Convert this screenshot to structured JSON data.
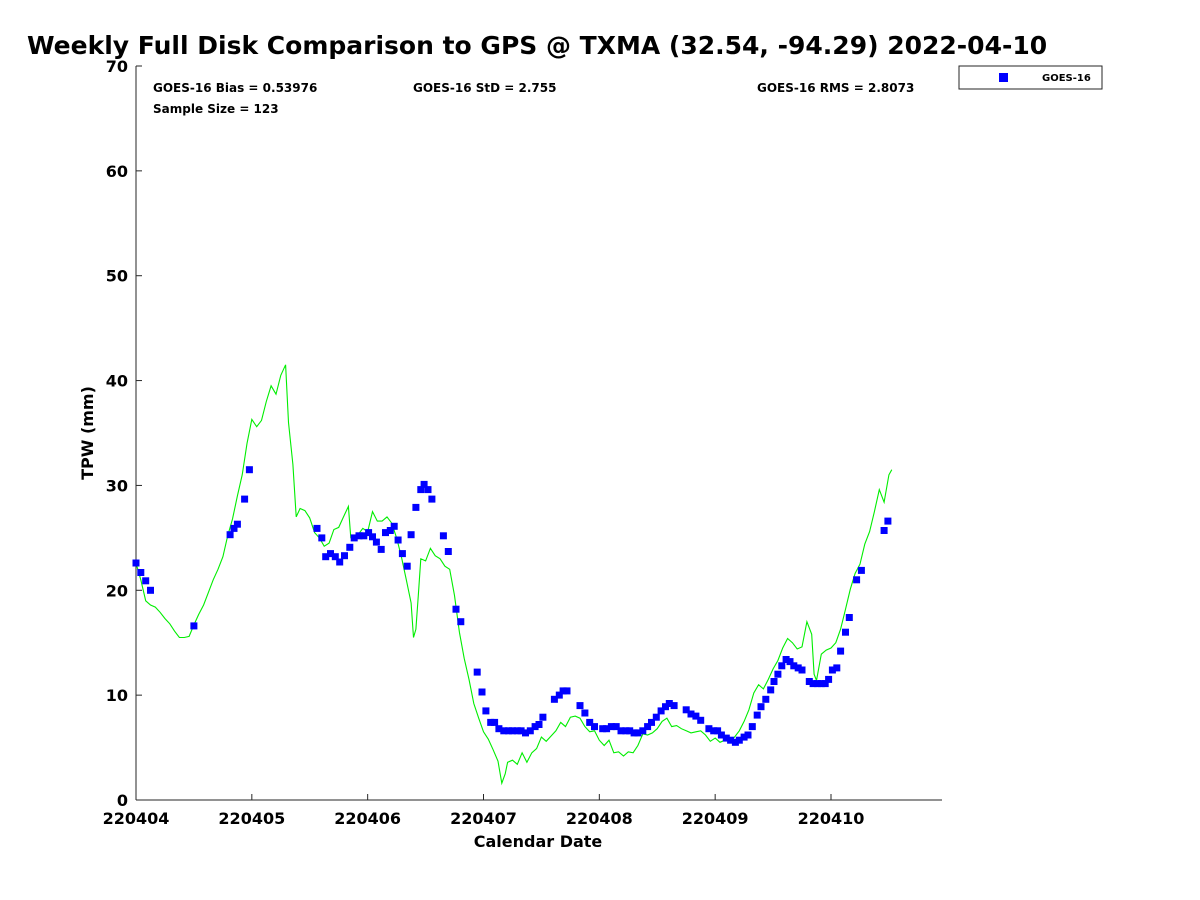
{
  "chart_data": {
    "type": "scatter",
    "title": "Weekly Full Disk Comparison to GPS @ TXMA (32.54, -94.29) 2022-04-10",
    "xlabel": "Calendar Date",
    "ylabel": "TPW (mm)",
    "x_ticks": [
      "220404",
      "220405",
      "220406",
      "220407",
      "220408",
      "220409",
      "220410"
    ],
    "y_ticks": [
      "0",
      "10",
      "20",
      "30",
      "40",
      "50",
      "60",
      "70"
    ],
    "ylim": [
      0,
      70
    ],
    "x_unit": "hours since 220404",
    "xlim": [
      0,
      167
    ],
    "grid": false,
    "legend_position": "top-right, outside plot",
    "stats": {
      "bias": "GOES-16 Bias = 0.53976",
      "std": "GOES-16 StD = 2.755",
      "rms": "GOES-16 RMS = 2.8073",
      "sample": "Sample Size = 123"
    },
    "series": [
      {
        "name": "GOES-16",
        "marker": "square",
        "color": "#0000ff",
        "points": [
          [
            0,
            22.6
          ],
          [
            1,
            21.7
          ],
          [
            2,
            20.9
          ],
          [
            3,
            20.0
          ],
          [
            12,
            16.6
          ],
          [
            19.5,
            25.3
          ],
          [
            20.3,
            25.9
          ],
          [
            21,
            26.3
          ],
          [
            22.5,
            28.7
          ],
          [
            23.5,
            31.5
          ],
          [
            37.5,
            25.9
          ],
          [
            38.5,
            25.0
          ],
          [
            39.3,
            23.2
          ],
          [
            40.3,
            23.5
          ],
          [
            41.3,
            23.2
          ],
          [
            42.2,
            22.7
          ],
          [
            43.2,
            23.3
          ],
          [
            44.3,
            24.1
          ],
          [
            45.2,
            25.0
          ],
          [
            46.2,
            25.2
          ],
          [
            47.2,
            25.2
          ],
          [
            48.2,
            25.5
          ],
          [
            49,
            25.1
          ],
          [
            49.8,
            24.6
          ],
          [
            50.8,
            23.9
          ],
          [
            51.7,
            25.5
          ],
          [
            52.7,
            25.7
          ],
          [
            53.5,
            26.1
          ],
          [
            54.3,
            24.8
          ],
          [
            55.2,
            23.5
          ],
          [
            56.2,
            22.3
          ],
          [
            57,
            25.3
          ],
          [
            58,
            27.9
          ],
          [
            59,
            29.6
          ],
          [
            59.7,
            30.1
          ],
          [
            60.5,
            29.6
          ],
          [
            61.3,
            28.7
          ],
          [
            63.7,
            25.2
          ],
          [
            64.7,
            23.7
          ],
          [
            66.3,
            18.2
          ],
          [
            67.3,
            17.0
          ],
          [
            70.7,
            12.2
          ],
          [
            71.7,
            10.3
          ],
          [
            72.5,
            8.5
          ],
          [
            73.5,
            7.4
          ],
          [
            74.3,
            7.4
          ],
          [
            75.2,
            6.8
          ],
          [
            76.2,
            6.6
          ],
          [
            77.2,
            6.6
          ],
          [
            78,
            6.6
          ],
          [
            79,
            6.6
          ],
          [
            79.8,
            6.6
          ],
          [
            80.7,
            6.4
          ],
          [
            81.7,
            6.6
          ],
          [
            82.7,
            7.0
          ],
          [
            83.5,
            7.2
          ],
          [
            84.3,
            7.9
          ],
          [
            86.7,
            9.6
          ],
          [
            87.7,
            10.0
          ],
          [
            88.5,
            10.4
          ],
          [
            89.3,
            10.4
          ],
          [
            92,
            9.0
          ],
          [
            93,
            8.3
          ],
          [
            94,
            7.4
          ],
          [
            95,
            7.0
          ],
          [
            96.7,
            6.8
          ],
          [
            97.5,
            6.8
          ],
          [
            98.5,
            7.0
          ],
          [
            99.5,
            7.0
          ],
          [
            100.5,
            6.6
          ],
          [
            101.5,
            6.6
          ],
          [
            102.3,
            6.6
          ],
          [
            103.2,
            6.4
          ],
          [
            104,
            6.4
          ],
          [
            105,
            6.6
          ],
          [
            106,
            7.0
          ],
          [
            106.8,
            7.4
          ],
          [
            107.8,
            7.9
          ],
          [
            108.8,
            8.5
          ],
          [
            109.7,
            8.9
          ],
          [
            110.5,
            9.2
          ],
          [
            111.5,
            9.0
          ],
          [
            114,
            8.6
          ],
          [
            115,
            8.2
          ],
          [
            116,
            8.0
          ],
          [
            117,
            7.6
          ],
          [
            118.7,
            6.8
          ],
          [
            119.7,
            6.6
          ],
          [
            120.5,
            6.6
          ],
          [
            121.3,
            6.2
          ],
          [
            122.3,
            5.9
          ],
          [
            123.2,
            5.7
          ],
          [
            124.2,
            5.5
          ],
          [
            125,
            5.7
          ],
          [
            126,
            6.0
          ],
          [
            126.8,
            6.2
          ],
          [
            127.7,
            7.0
          ],
          [
            128.7,
            8.1
          ],
          [
            129.5,
            8.9
          ],
          [
            130.5,
            9.6
          ],
          [
            131.5,
            10.5
          ],
          [
            132.2,
            11.3
          ],
          [
            133,
            12.0
          ],
          [
            133.8,
            12.8
          ],
          [
            134.7,
            13.4
          ],
          [
            135.5,
            13.2
          ],
          [
            136.3,
            12.8
          ],
          [
            137.2,
            12.6
          ],
          [
            138,
            12.4
          ],
          [
            139.5,
            11.3
          ],
          [
            140.3,
            11.1
          ],
          [
            141.2,
            11.1
          ],
          [
            142,
            11.1
          ],
          [
            142.8,
            11.1
          ],
          [
            143.5,
            11.5
          ],
          [
            144.3,
            12.4
          ],
          [
            145.2,
            12.6
          ],
          [
            146,
            14.2
          ],
          [
            147,
            16.0
          ],
          [
            147.8,
            17.4
          ],
          [
            149.3,
            21.0
          ],
          [
            150.3,
            21.9
          ],
          [
            155,
            25.7
          ],
          [
            155.8,
            26.6
          ]
        ]
      },
      {
        "name": "GPS",
        "marker": "line",
        "color": "#00ee00",
        "points": [
          [
            0,
            22.6
          ],
          [
            1,
            21.0
          ],
          [
            2,
            19.0
          ],
          [
            3,
            18.6
          ],
          [
            4,
            18.4
          ],
          [
            5,
            17.9
          ],
          [
            6,
            17.3
          ],
          [
            7,
            16.8
          ],
          [
            8,
            16.1
          ],
          [
            9,
            15.5
          ],
          [
            10,
            15.5
          ],
          [
            11,
            15.6
          ],
          [
            12,
            16.7
          ],
          [
            13,
            17.7
          ],
          [
            14,
            18.6
          ],
          [
            15,
            19.8
          ],
          [
            16,
            21.0
          ],
          [
            17,
            22.0
          ],
          [
            18,
            23.2
          ],
          [
            19,
            25.2
          ],
          [
            20,
            26.8
          ],
          [
            21,
            29.0
          ],
          [
            22,
            31.0
          ],
          [
            23,
            34.0
          ],
          [
            24,
            36.3
          ],
          [
            25,
            35.6
          ],
          [
            26,
            36.2
          ],
          [
            27,
            38.0
          ],
          [
            28,
            39.5
          ],
          [
            29,
            38.7
          ],
          [
            30,
            40.5
          ],
          [
            31,
            41.5
          ],
          [
            31.6,
            36.0
          ],
          [
            32.5,
            32.0
          ],
          [
            33.2,
            27.0
          ],
          [
            34,
            27.8
          ],
          [
            35,
            27.6
          ],
          [
            36,
            26.9
          ],
          [
            37,
            25.5
          ],
          [
            38,
            25.0
          ],
          [
            39,
            24.2
          ],
          [
            40,
            24.5
          ],
          [
            41,
            25.8
          ],
          [
            42,
            26.0
          ],
          [
            43,
            27.0
          ],
          [
            44,
            28.0
          ],
          [
            44.5,
            25.0
          ],
          [
            45,
            24.8
          ],
          [
            46,
            25.3
          ],
          [
            47,
            25.9
          ],
          [
            48,
            25.6
          ],
          [
            49,
            27.5
          ],
          [
            50,
            26.6
          ],
          [
            51,
            26.6
          ],
          [
            52,
            27.0
          ],
          [
            53,
            26.4
          ],
          [
            54,
            25.0
          ],
          [
            55,
            23.2
          ],
          [
            56,
            21.0
          ],
          [
            57,
            18.8
          ],
          [
            57.5,
            15.5
          ],
          [
            58,
            16.3
          ],
          [
            58.5,
            19.5
          ],
          [
            59,
            23.0
          ],
          [
            60,
            22.8
          ],
          [
            61,
            24.0
          ],
          [
            62,
            23.3
          ],
          [
            63,
            23.0
          ],
          [
            64,
            22.3
          ],
          [
            65,
            22.0
          ],
          [
            66,
            19.5
          ],
          [
            67,
            16.0
          ],
          [
            68,
            13.5
          ],
          [
            69,
            11.5
          ],
          [
            70,
            9.2
          ],
          [
            71,
            7.8
          ],
          [
            72,
            6.5
          ],
          [
            73,
            5.8
          ],
          [
            74,
            4.8
          ],
          [
            75,
            3.7
          ],
          [
            75.8,
            1.6
          ],
          [
            76.5,
            2.5
          ],
          [
            77,
            3.6
          ],
          [
            78,
            3.8
          ],
          [
            79,
            3.4
          ],
          [
            80,
            4.5
          ],
          [
            81,
            3.6
          ],
          [
            82,
            4.5
          ],
          [
            83,
            4.9
          ],
          [
            84,
            6.0
          ],
          [
            85,
            5.6
          ],
          [
            86,
            6.1
          ],
          [
            87,
            6.6
          ],
          [
            88,
            7.4
          ],
          [
            89,
            7.0
          ],
          [
            90,
            7.9
          ],
          [
            91,
            8.0
          ],
          [
            92,
            7.8
          ],
          [
            93,
            7.0
          ],
          [
            94,
            6.5
          ],
          [
            95,
            6.6
          ],
          [
            96,
            5.7
          ],
          [
            97,
            5.2
          ],
          [
            98,
            5.7
          ],
          [
            99,
            4.5
          ],
          [
            100,
            4.6
          ],
          [
            101,
            4.2
          ],
          [
            102,
            4.6
          ],
          [
            103,
            4.5
          ],
          [
            104,
            5.2
          ],
          [
            105,
            6.3
          ],
          [
            106,
            6.2
          ],
          [
            107,
            6.4
          ],
          [
            108,
            6.8
          ],
          [
            109,
            7.5
          ],
          [
            110,
            7.8
          ],
          [
            111,
            7.0
          ],
          [
            112,
            7.1
          ],
          [
            113,
            6.8
          ],
          [
            114,
            6.6
          ],
          [
            115,
            6.4
          ],
          [
            116,
            6.5
          ],
          [
            117,
            6.6
          ],
          [
            118,
            6.2
          ],
          [
            119,
            5.6
          ],
          [
            120,
            5.9
          ],
          [
            121,
            5.5
          ],
          [
            122,
            5.7
          ],
          [
            123,
            5.6
          ],
          [
            124,
            6.0
          ],
          [
            125,
            6.6
          ],
          [
            126,
            7.5
          ],
          [
            127,
            8.6
          ],
          [
            128,
            10.2
          ],
          [
            129,
            11.0
          ],
          [
            130,
            10.6
          ],
          [
            131,
            11.5
          ],
          [
            132,
            12.5
          ],
          [
            133,
            13.3
          ],
          [
            134,
            14.5
          ],
          [
            135,
            15.4
          ],
          [
            136,
            15.0
          ],
          [
            137,
            14.4
          ],
          [
            138,
            14.6
          ],
          [
            139,
            17.0
          ],
          [
            140,
            15.8
          ],
          [
            140.5,
            12.0
          ],
          [
            141,
            11.4
          ],
          [
            142,
            13.9
          ],
          [
            143,
            14.3
          ],
          [
            144,
            14.5
          ],
          [
            145,
            15.0
          ],
          [
            146,
            16.3
          ],
          [
            147,
            18.2
          ],
          [
            148,
            20.1
          ],
          [
            149,
            21.6
          ],
          [
            150,
            22.5
          ],
          [
            151,
            24.4
          ],
          [
            152,
            25.6
          ],
          [
            153,
            27.5
          ],
          [
            154,
            29.6
          ],
          [
            155,
            28.4
          ],
          [
            156,
            31.0
          ],
          [
            156.6,
            31.5
          ]
        ]
      }
    ]
  }
}
